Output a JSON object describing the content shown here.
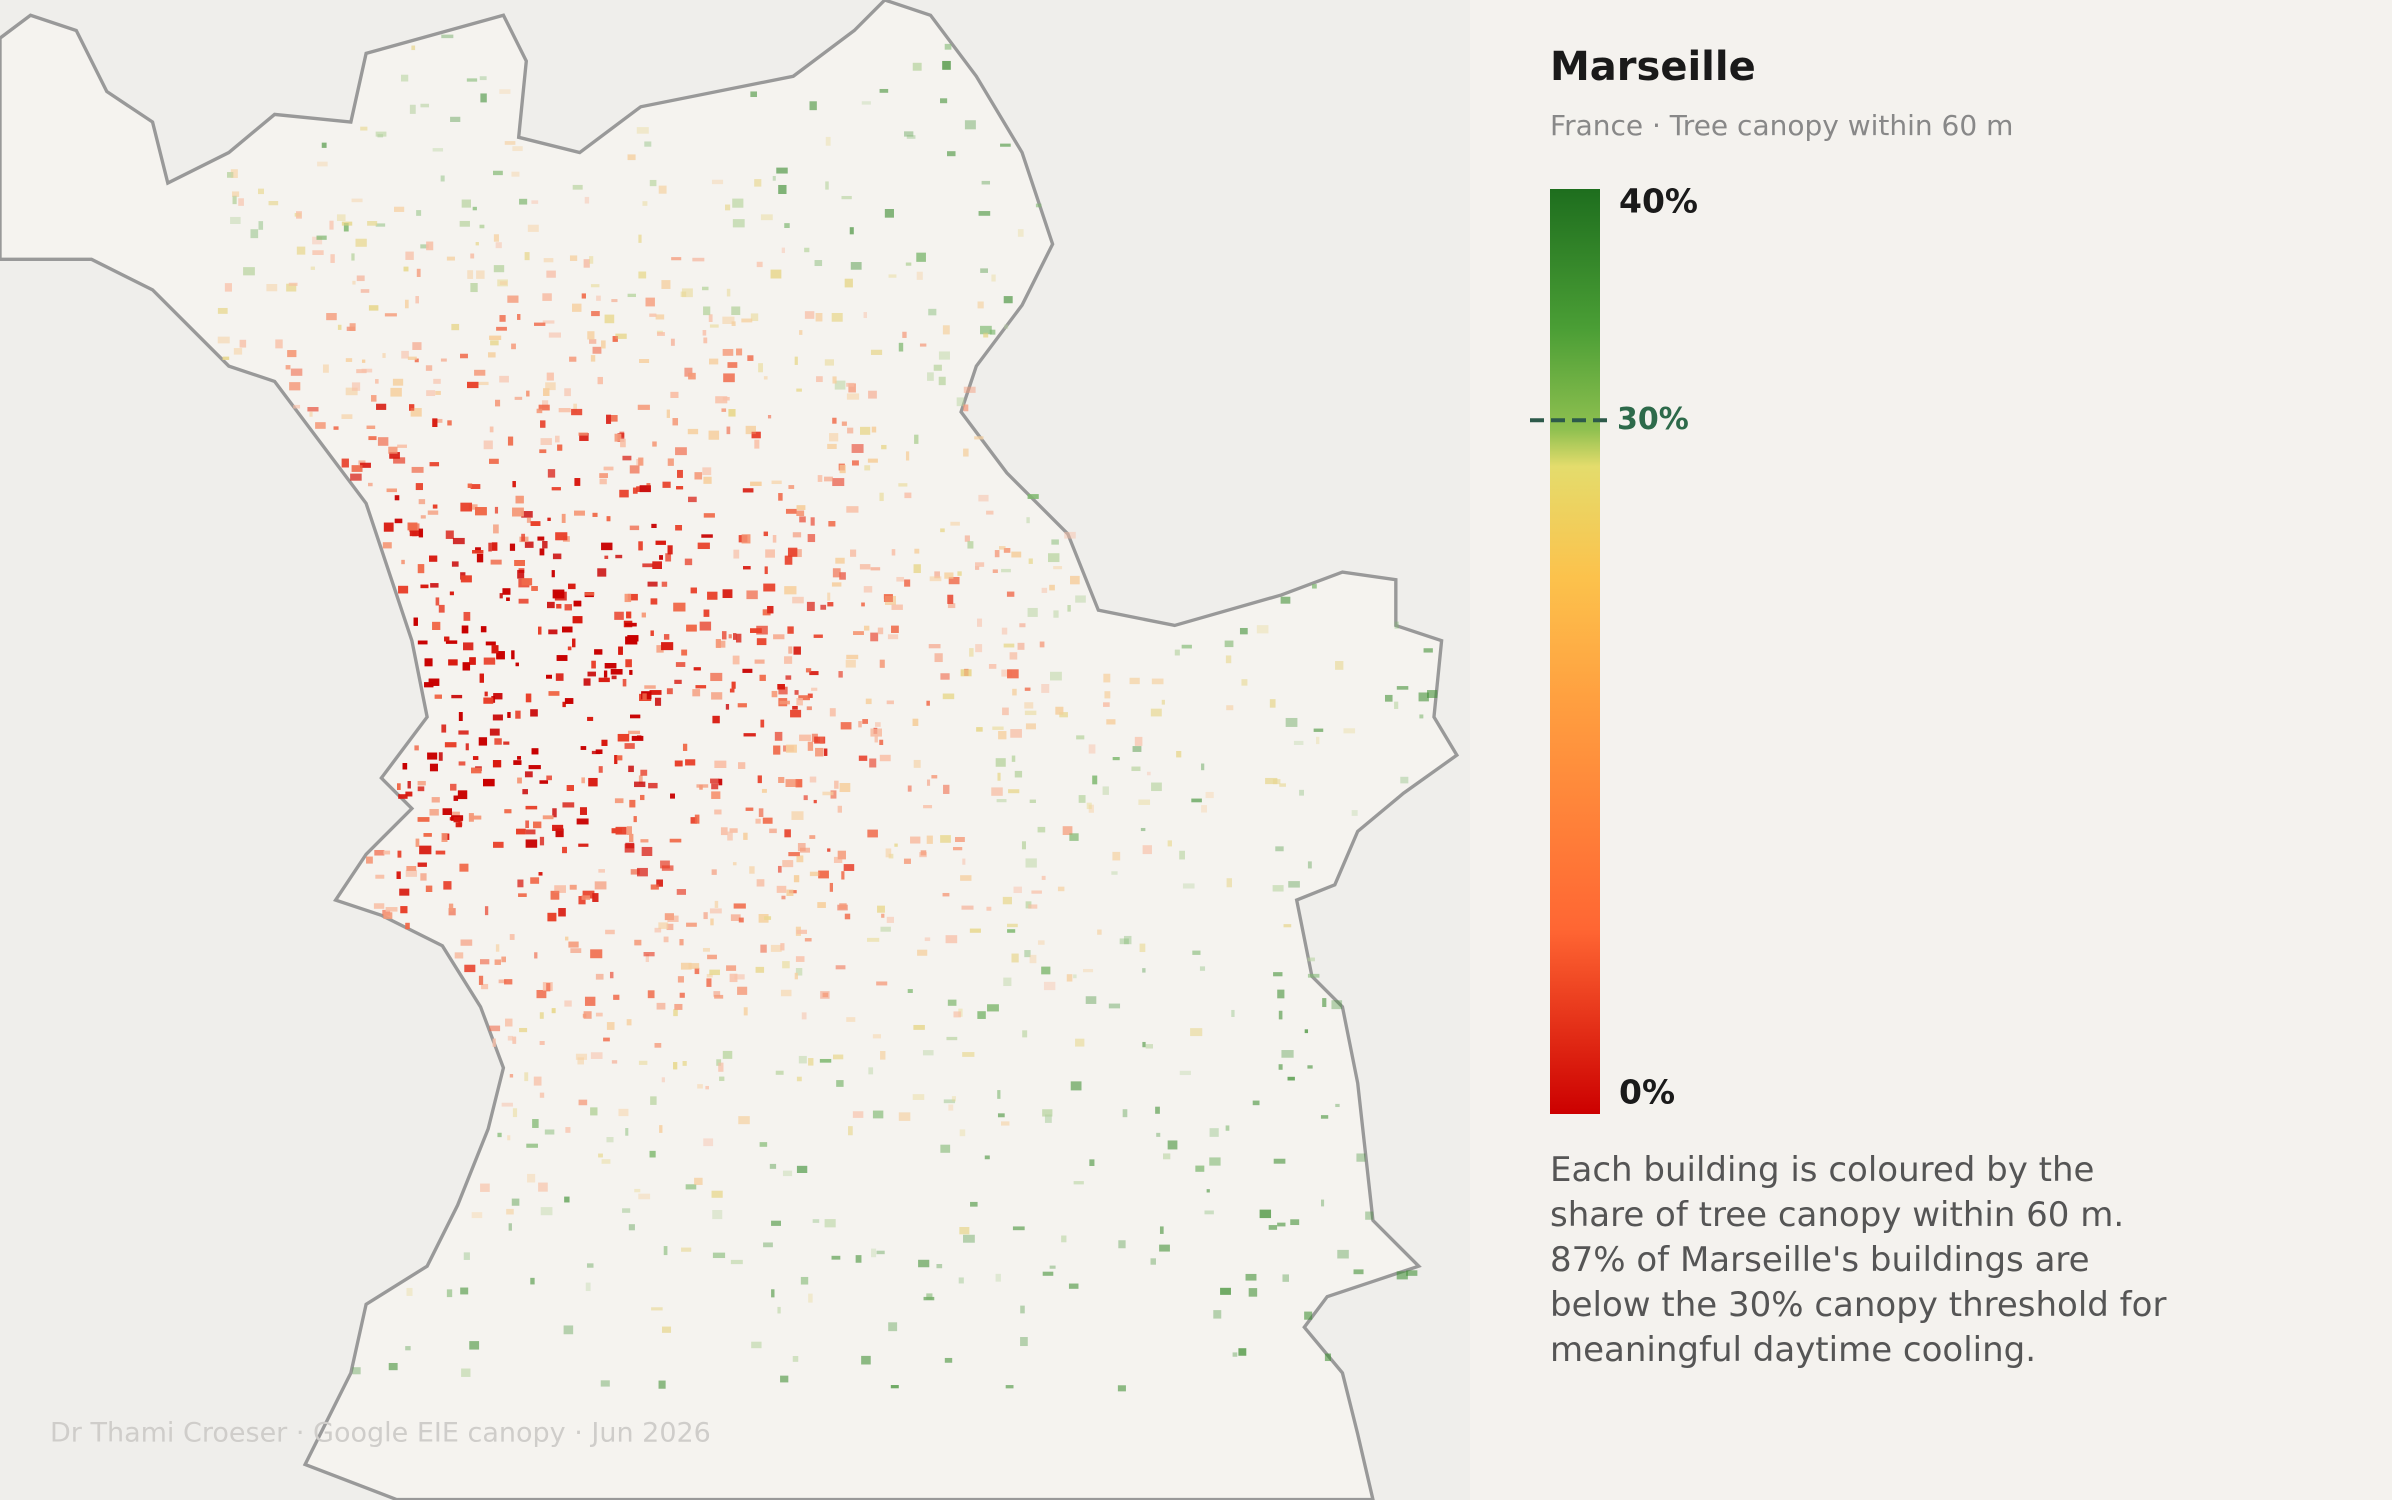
{
  "title": "Marseille",
  "subtitle": "France  ·  Tree canopy within 60 m",
  "legend": {
    "lim": [
      0,
      40
    ],
    "ticks": [
      {
        "value": 40,
        "label": "40%"
      },
      {
        "value": 0,
        "label": "0%"
      }
    ],
    "threshold": {
      "value": 30,
      "label": "30%"
    }
  },
  "description": "Each building is coloured by the share of tree canopy within 60 m. 87% of Marseille's buildings are below the 30% canopy threshold for meaningful daytime cooling.",
  "credits": "Dr Thami Croeser  ·  Google EIE canopy  ·  Jun 2026"
}
